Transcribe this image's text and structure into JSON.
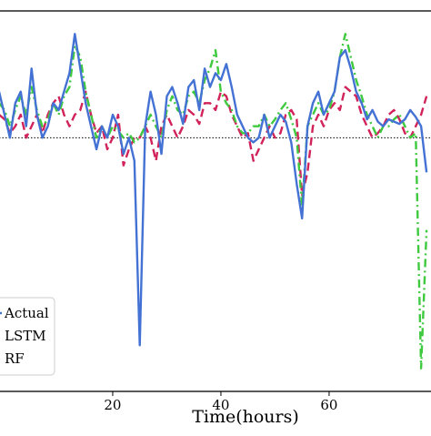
{
  "chart_data": {
    "type": "line",
    "title": "",
    "xlabel": "Time(hours)",
    "ylabel": "",
    "xlim": [
      -1,
      79
    ],
    "ylim": [
      -1.1,
      0.55
    ],
    "x_ticks": [
      20,
      40,
      60
    ],
    "grid": false,
    "legend": {
      "placement": "bottom-left",
      "entries": [
        "Actual",
        "LSTM",
        "RF"
      ]
    },
    "reference_line": {
      "y": 0,
      "style": "dotted",
      "color": "#000000"
    },
    "series": [
      {
        "name": "Actual",
        "color": "#4472d4",
        "dash": "solid",
        "x": [
          -1,
          0,
          1,
          2,
          3,
          4,
          5,
          6,
          7,
          8,
          9,
          10,
          11,
          12,
          13,
          14,
          15,
          16,
          17,
          18,
          19,
          20,
          21,
          22,
          23,
          24,
          25,
          26,
          27,
          28,
          29,
          30,
          31,
          32,
          33,
          34,
          35,
          36,
          37,
          38,
          39,
          40,
          41,
          42,
          43,
          44,
          45,
          46,
          47,
          48,
          49,
          50,
          51,
          52,
          53,
          54,
          55,
          56,
          57,
          58,
          59,
          60,
          61,
          62,
          63,
          64,
          65,
          66,
          67,
          68,
          69,
          70,
          71,
          72,
          73,
          74,
          75,
          76,
          77,
          78
        ],
        "y": [
          0.2,
          0.1,
          0.0,
          0.15,
          0.2,
          0.05,
          0.3,
          0.1,
          0.0,
          0.05,
          0.15,
          0.12,
          0.2,
          0.28,
          0.45,
          0.3,
          0.15,
          0.05,
          -0.05,
          0.05,
          0.0,
          0.1,
          0.05,
          -0.07,
          0.0,
          -0.1,
          -0.9,
          0.05,
          0.2,
          0.1,
          -0.07,
          0.18,
          0.22,
          0.15,
          0.06,
          0.22,
          0.25,
          0.12,
          0.3,
          0.22,
          0.28,
          0.25,
          0.32,
          0.22,
          0.1,
          0.05,
          0.0,
          -0.02,
          0.0,
          0.1,
          0.0,
          0.05,
          0.1,
          0.07,
          -0.02,
          -0.2,
          -0.35,
          0.05,
          0.15,
          0.2,
          0.1,
          0.15,
          0.2,
          0.35,
          0.38,
          0.3,
          0.2,
          0.15,
          0.08,
          0.12,
          0.07,
          0.05,
          0.08,
          0.07,
          0.06,
          0.08,
          0.12,
          0.09,
          0.05,
          -0.15
        ]
      },
      {
        "name": "LSTM",
        "color": "#d1235a",
        "dash": "dashed",
        "x": [
          -1,
          0,
          1,
          2,
          3,
          4,
          5,
          6,
          7,
          8,
          9,
          10,
          11,
          12,
          13,
          14,
          15,
          16,
          17,
          18,
          19,
          20,
          21,
          22,
          23,
          24,
          25,
          26,
          27,
          28,
          29,
          30,
          31,
          32,
          33,
          34,
          35,
          36,
          37,
          38,
          39,
          40,
          41,
          42,
          43,
          44,
          45,
          46,
          47,
          48,
          49,
          50,
          51,
          52,
          53,
          54,
          55,
          56,
          57,
          58,
          59,
          60,
          61,
          62,
          63,
          64,
          65,
          66,
          67,
          68,
          69,
          70,
          71,
          72,
          73,
          74,
          75,
          76,
          77,
          78
        ],
        "y": [
          0.1,
          0.08,
          0.02,
          0.05,
          0.1,
          0.0,
          0.05,
          0.1,
          0.02,
          0.1,
          0.15,
          0.18,
          0.1,
          0.05,
          0.1,
          0.12,
          0.2,
          0.1,
          0.02,
          0.05,
          -0.05,
          0.0,
          0.1,
          -0.12,
          -0.05,
          0.0,
          0.0,
          0.05,
          0.0,
          -0.1,
          0.05,
          0.1,
          0.05,
          0.0,
          0.05,
          0.12,
          0.1,
          0.06,
          0.15,
          0.15,
          0.12,
          0.2,
          0.18,
          0.1,
          0.05,
          0.0,
          0.02,
          -0.1,
          -0.05,
          0.0,
          0.05,
          0.0,
          0.02,
          0.1,
          0.12,
          0.08,
          -0.25,
          -0.15,
          0.05,
          0.1,
          0.05,
          0.12,
          0.15,
          0.12,
          0.22,
          0.2,
          0.18,
          0.1,
          0.05,
          0.0,
          0.02,
          0.05,
          0.1,
          0.12,
          0.08,
          0.02,
          0.0,
          0.05,
          0.1,
          0.18
        ]
      },
      {
        "name": "RF",
        "color": "#3ec93e",
        "dash": "dashdot",
        "x": [
          -1,
          0,
          1,
          2,
          3,
          4,
          5,
          6,
          7,
          8,
          9,
          10,
          11,
          12,
          13,
          14,
          15,
          16,
          17,
          18,
          19,
          20,
          21,
          22,
          23,
          24,
          25,
          26,
          27,
          28,
          29,
          30,
          31,
          32,
          33,
          34,
          35,
          36,
          37,
          38,
          39,
          40,
          41,
          42,
          43,
          44,
          45,
          46,
          47,
          48,
          49,
          50,
          51,
          52,
          53,
          54,
          55,
          56,
          57,
          58,
          59,
          60,
          61,
          62,
          63,
          64,
          65,
          66,
          67,
          68,
          69,
          70,
          71,
          72,
          73,
          74,
          75,
          76,
          77,
          78
        ],
        "y": [
          0.15,
          0.12,
          0.05,
          0.12,
          0.18,
          0.1,
          0.22,
          0.12,
          0.05,
          0.08,
          0.15,
          0.1,
          0.18,
          0.22,
          0.4,
          0.35,
          0.2,
          0.1,
          0.0,
          0.05,
          0.0,
          0.05,
          0.03,
          0.0,
          0.02,
          -0.02,
          0.0,
          0.05,
          0.1,
          0.05,
          0.0,
          0.12,
          0.18,
          0.12,
          0.1,
          0.18,
          0.2,
          0.15,
          0.25,
          0.3,
          0.38,
          0.2,
          0.15,
          0.12,
          0.05,
          0.02,
          0.02,
          0.05,
          0.05,
          0.1,
          0.05,
          0.08,
          0.12,
          0.15,
          0.08,
          0.0,
          -0.3,
          0.05,
          0.1,
          0.15,
          0.1,
          0.12,
          0.2,
          0.35,
          0.45,
          0.35,
          0.25,
          0.18,
          0.1,
          0.05,
          0.0,
          0.05,
          0.05,
          0.08,
          0.1,
          0.05,
          0.0,
          0.02,
          -1.0,
          -0.4
        ]
      }
    ]
  }
}
